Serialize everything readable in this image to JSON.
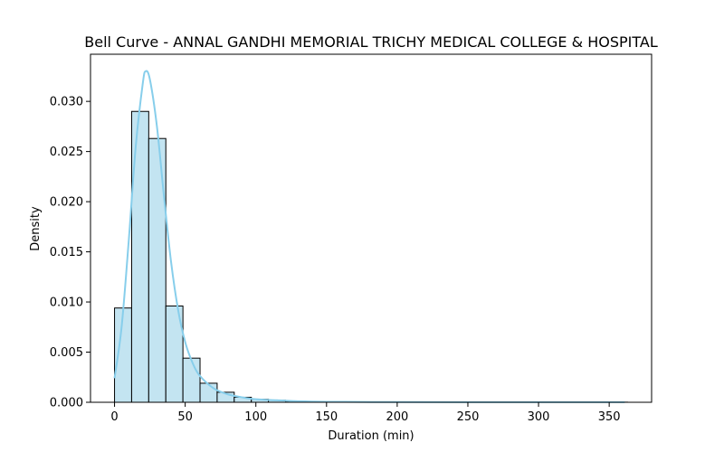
{
  "chart_data": {
    "type": "bar",
    "title": "Bell Curve - ANNAL GANDHI MEMORIAL TRICHY MEDICAL COLLEGE & HOSPITAL",
    "xlabel": "Duration (min)",
    "ylabel": "Density",
    "xlim": [
      -17,
      380
    ],
    "ylim": [
      0,
      0.0347
    ],
    "x_ticks": [
      0,
      50,
      100,
      150,
      200,
      250,
      300,
      350
    ],
    "y_ticks": [
      0.0,
      0.005,
      0.01,
      0.015,
      0.02,
      0.025,
      0.03
    ],
    "y_tick_labels": [
      "0.000",
      "0.005",
      "0.010",
      "0.015",
      "0.020",
      "0.025",
      "0.030"
    ],
    "bin_width": 12.1,
    "bins": [
      {
        "x0": 0.0,
        "density": 0.0094
      },
      {
        "x0": 12.1,
        "density": 0.029
      },
      {
        "x0": 24.2,
        "density": 0.0263
      },
      {
        "x0": 36.3,
        "density": 0.0096
      },
      {
        "x0": 48.4,
        "density": 0.0044
      },
      {
        "x0": 60.5,
        "density": 0.0019
      },
      {
        "x0": 72.6,
        "density": 0.001
      },
      {
        "x0": 84.7,
        "density": 0.0005
      },
      {
        "x0": 96.8,
        "density": 0.0003
      },
      {
        "x0": 108.9,
        "density": 0.0002
      },
      {
        "x0": 121.0,
        "density": 0.0001
      },
      {
        "x0": 133.1,
        "density": 8e-05
      },
      {
        "x0": 145.2,
        "density": 5e-05
      },
      {
        "x0": 157.3,
        "density": 4e-05
      },
      {
        "x0": 169.4,
        "density": 3e-05
      },
      {
        "x0": 181.5,
        "density": 2e-05
      },
      {
        "x0": 193.6,
        "density": 2e-05
      },
      {
        "x0": 205.7,
        "density": 1e-05
      },
      {
        "x0": 217.8,
        "density": 1e-05
      },
      {
        "x0": 229.9,
        "density": 1e-05
      },
      {
        "x0": 242.0,
        "density": 1e-05
      },
      {
        "x0": 254.1,
        "density": 1e-05
      },
      {
        "x0": 266.2,
        "density": 1e-05
      },
      {
        "x0": 278.3,
        "density": 1e-05
      },
      {
        "x0": 290.4,
        "density": 1e-05
      },
      {
        "x0": 302.5,
        "density": 1e-05
      },
      {
        "x0": 314.6,
        "density": 1e-05
      },
      {
        "x0": 326.7,
        "density": 1e-05
      },
      {
        "x0": 338.8,
        "density": 1e-05
      },
      {
        "x0": 350.9,
        "density": 1e-05
      }
    ],
    "kde": [
      {
        "x": 0,
        "y": 0.0024
      },
      {
        "x": 5,
        "y": 0.0075
      },
      {
        "x": 10,
        "y": 0.016
      },
      {
        "x": 15,
        "y": 0.0255
      },
      {
        "x": 20,
        "y": 0.0318
      },
      {
        "x": 22,
        "y": 0.033
      },
      {
        "x": 25,
        "y": 0.0322
      },
      {
        "x": 30,
        "y": 0.0275
      },
      {
        "x": 35,
        "y": 0.0205
      },
      {
        "x": 40,
        "y": 0.014
      },
      {
        "x": 45,
        "y": 0.0092
      },
      {
        "x": 50,
        "y": 0.006
      },
      {
        "x": 55,
        "y": 0.004
      },
      {
        "x": 60,
        "y": 0.0027
      },
      {
        "x": 70,
        "y": 0.0014
      },
      {
        "x": 80,
        "y": 0.0008
      },
      {
        "x": 90,
        "y": 0.0005
      },
      {
        "x": 100,
        "y": 0.0003
      },
      {
        "x": 115,
        "y": 0.0002
      },
      {
        "x": 130,
        "y": 0.0001
      },
      {
        "x": 150,
        "y": 5e-05
      },
      {
        "x": 200,
        "y": 2e-05
      },
      {
        "x": 250,
        "y": 1e-05
      },
      {
        "x": 300,
        "y": 1e-05
      },
      {
        "x": 361,
        "y": 1e-05
      }
    ],
    "colors": {
      "bar_fill": "#c3e4f1",
      "bar_edge": "#000000",
      "kde_line": "#87ceeb",
      "axes": "#000000",
      "background": "#ffffff"
    },
    "grid": false
  }
}
